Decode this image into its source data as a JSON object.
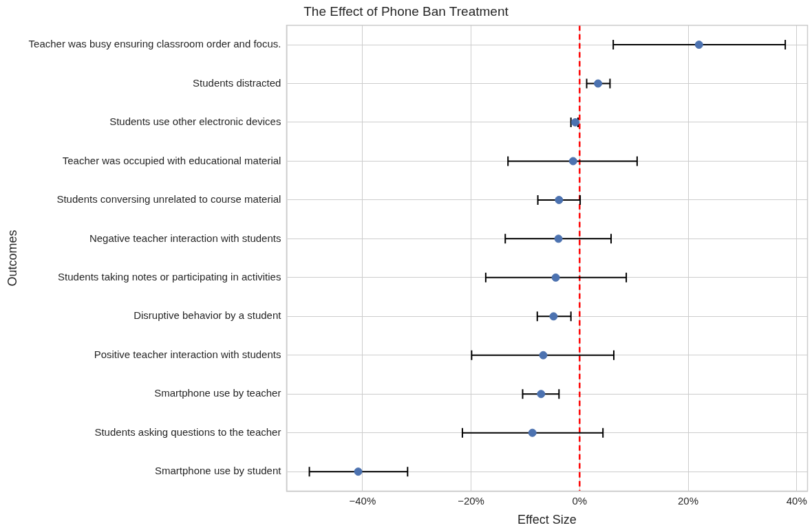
{
  "chart_data": {
    "type": "scatter",
    "orientation": "horizontal",
    "title": "The Effect of Phone Ban Treatment",
    "xlabel": "Effect Size",
    "ylabel": "Outcomes",
    "categories": [
      "Teacher was busy ensuring classroom order and focus.",
      "Students distracted",
      "Students use other electronic devices",
      "Teacher was occupied with educational material",
      "Students conversing unrelated to course material",
      "Negative teacher interaction with students",
      "Students taking notes or participating in activities",
      "Disruptive behavior by a student",
      "Positive teacher interaction with students",
      "Smartphone use by teacher",
      "Students asking questions to the teacher",
      "Smartphone use by student"
    ],
    "series": [
      {
        "color": "#4c72b0",
        "values": [
          22.0,
          3.4,
          -0.8,
          -1.2,
          -3.8,
          -3.9,
          -4.4,
          -4.8,
          -6.7,
          -7.1,
          -8.7,
          -40.8
        ],
        "errors": [
          [
            6.2,
            37.9
          ],
          [
            1.3,
            5.6
          ],
          [
            -1.6,
            -0.3
          ],
          [
            -13.2,
            10.6
          ],
          [
            -7.7,
            0.1
          ],
          [
            -13.7,
            5.8
          ],
          [
            -17.3,
            8.6
          ],
          [
            -7.8,
            -1.6
          ],
          [
            -19.9,
            6.3
          ],
          [
            -10.5,
            -3.8
          ],
          [
            -21.6,
            4.3
          ],
          [
            -49.8,
            -31.7
          ]
        ]
      }
    ],
    "xlim": [
      -54,
      42
    ],
    "xticks": [
      {
        "value": -40,
        "label": "−40%"
      },
      {
        "value": -20,
        "label": "−20%"
      },
      {
        "value": 0,
        "label": "0%"
      },
      {
        "value": 20,
        "label": "20%"
      },
      {
        "value": 40,
        "label": "40%"
      }
    ],
    "ref_lines": [
      {
        "axis": "x",
        "value": 0,
        "color": "#ff0000",
        "line_style": "dashed"
      }
    ],
    "grid": true,
    "marker": "circle",
    "legend": false
  }
}
